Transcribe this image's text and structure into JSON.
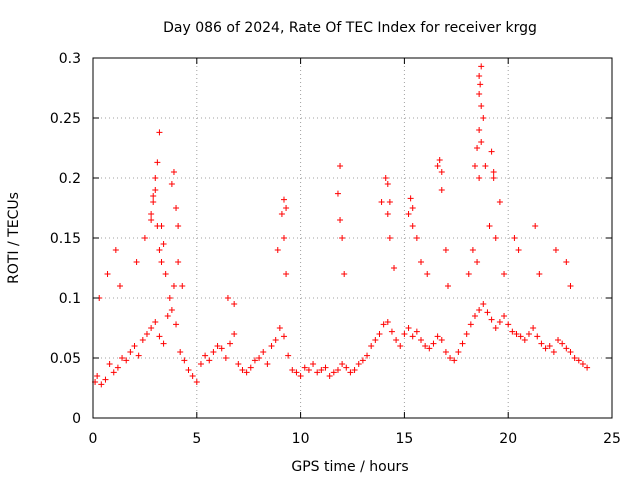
{
  "chart_data": {
    "type": "scatter",
    "title": "Day 086 of 2024, Rate Of TEC Index for receiver krgg",
    "xlabel": "GPS time / hours",
    "ylabel": "ROTI / TECUs",
    "xlim": [
      0,
      25
    ],
    "ylim": [
      0,
      0.3
    ],
    "xticks": [
      "0",
      "5",
      "10",
      "15",
      "20",
      "25"
    ],
    "yticks": [
      "0",
      "0.05",
      "0.1",
      "0.15",
      "0.2",
      "0.25",
      "0.3"
    ],
    "grid": true,
    "marker": "+",
    "color": "#ff0000",
    "x": [
      0.1,
      0.2,
      0.4,
      0.6,
      0.8,
      1.0,
      1.2,
      1.4,
      1.6,
      1.8,
      2.0,
      2.2,
      2.4,
      2.6,
      2.8,
      3.0,
      3.2,
      3.4,
      3.6,
      3.8,
      4.0,
      4.2,
      4.4,
      4.6,
      4.8,
      5.0,
      5.2,
      5.4,
      5.6,
      5.8,
      6.0,
      6.2,
      6.4,
      6.6,
      6.8,
      7.0,
      7.2,
      7.4,
      7.6,
      7.8,
      8.0,
      8.2,
      8.4,
      8.6,
      8.8,
      9.0,
      9.2,
      9.4,
      9.6,
      9.8,
      10.0,
      10.2,
      10.4,
      10.6,
      10.8,
      11.0,
      11.2,
      11.4,
      11.6,
      11.8,
      12.0,
      12.2,
      12.4,
      12.6,
      12.8,
      13.0,
      13.2,
      13.4,
      13.6,
      13.8,
      14.0,
      14.2,
      14.4,
      14.6,
      14.8,
      15.0,
      15.2,
      15.4,
      15.6,
      15.8,
      16.0,
      16.2,
      16.4,
      16.6,
      16.8,
      17.0,
      17.2,
      17.4,
      17.6,
      17.8,
      18.0,
      18.2,
      18.4,
      18.6,
      18.8,
      19.0,
      19.2,
      19.4,
      19.6,
      19.8,
      20.0,
      20.2,
      20.4,
      20.6,
      20.8,
      21.0,
      21.2,
      21.4,
      21.6,
      21.8,
      22.0,
      22.2,
      22.4,
      22.6,
      22.8,
      23.0,
      23.2,
      23.4,
      23.6,
      23.8,
      0.3,
      0.7,
      1.1,
      1.3,
      2.1,
      2.5,
      2.8,
      2.9,
      3.0,
      3.1,
      3.2,
      3.3,
      3.5,
      3.7,
      3.9,
      4.1,
      4.3,
      6.5,
      6.8,
      8.9,
      9.1,
      9.2,
      9.3,
      11.9,
      12.0,
      12.1,
      13.9,
      14.1,
      14.2,
      14.3,
      14.5,
      15.2,
      15.4,
      15.6,
      15.8,
      16.1,
      16.6,
      16.8,
      17.0,
      17.1,
      18.1,
      18.3,
      18.5,
      18.6,
      18.7,
      18.8,
      18.9,
      19.1,
      19.3,
      19.4,
      19.6,
      19.8,
      20.3,
      20.5,
      21.3,
      21.5,
      22.3,
      22.8,
      23.0,
      3.0,
      3.1,
      3.2,
      2.9,
      2.8,
      3.8,
      3.9,
      4.0,
      4.1,
      14.2,
      14.3,
      15.3,
      15.4,
      16.7,
      16.8,
      18.4,
      18.5,
      18.6,
      18.7,
      19.2,
      19.3,
      9.3,
      9.2,
      11.8,
      11.9,
      18.6,
      18.6,
      18.7,
      18.65,
      3.3,
      3.4
    ],
    "y": [
      0.03,
      0.035,
      0.028,
      0.032,
      0.045,
      0.038,
      0.042,
      0.05,
      0.048,
      0.055,
      0.06,
      0.052,
      0.065,
      0.07,
      0.075,
      0.08,
      0.068,
      0.062,
      0.085,
      0.09,
      0.078,
      0.055,
      0.048,
      0.04,
      0.035,
      0.03,
      0.045,
      0.052,
      0.048,
      0.055,
      0.06,
      0.058,
      0.05,
      0.062,
      0.07,
      0.045,
      0.04,
      0.038,
      0.042,
      0.048,
      0.05,
      0.055,
      0.045,
      0.06,
      0.065,
      0.075,
      0.068,
      0.052,
      0.04,
      0.038,
      0.035,
      0.042,
      0.04,
      0.045,
      0.038,
      0.04,
      0.042,
      0.035,
      0.038,
      0.04,
      0.045,
      0.042,
      0.038,
      0.04,
      0.045,
      0.048,
      0.052,
      0.06,
      0.065,
      0.07,
      0.078,
      0.08,
      0.072,
      0.065,
      0.06,
      0.07,
      0.075,
      0.068,
      0.072,
      0.065,
      0.06,
      0.058,
      0.062,
      0.068,
      0.065,
      0.055,
      0.05,
      0.048,
      0.055,
      0.062,
      0.07,
      0.078,
      0.085,
      0.09,
      0.095,
      0.088,
      0.082,
      0.075,
      0.08,
      0.085,
      0.078,
      0.072,
      0.07,
      0.068,
      0.065,
      0.07,
      0.075,
      0.068,
      0.062,
      0.058,
      0.06,
      0.055,
      0.065,
      0.062,
      0.058,
      0.055,
      0.05,
      0.048,
      0.045,
      0.042,
      0.1,
      0.12,
      0.14,
      0.11,
      0.13,
      0.15,
      0.17,
      0.18,
      0.19,
      0.16,
      0.14,
      0.13,
      0.12,
      0.1,
      0.11,
      0.13,
      0.11,
      0.1,
      0.095,
      0.14,
      0.17,
      0.15,
      0.12,
      0.21,
      0.15,
      0.12,
      0.18,
      0.2,
      0.17,
      0.15,
      0.125,
      0.17,
      0.16,
      0.15,
      0.13,
      0.12,
      0.21,
      0.19,
      0.14,
      0.11,
      0.12,
      0.14,
      0.13,
      0.2,
      0.23,
      0.25,
      0.21,
      0.16,
      0.2,
      0.15,
      0.18,
      0.12,
      0.15,
      0.14,
      0.16,
      0.12,
      0.14,
      0.13,
      0.11,
      0.2,
      0.213,
      0.238,
      0.185,
      0.165,
      0.195,
      0.205,
      0.175,
      0.16,
      0.195,
      0.18,
      0.183,
      0.175,
      0.215,
      0.205,
      0.21,
      0.225,
      0.24,
      0.26,
      0.222,
      0.205,
      0.175,
      0.182,
      0.187,
      0.165,
      0.27,
      0.285,
      0.293,
      0.278,
      0.16,
      0.145
    ]
  }
}
